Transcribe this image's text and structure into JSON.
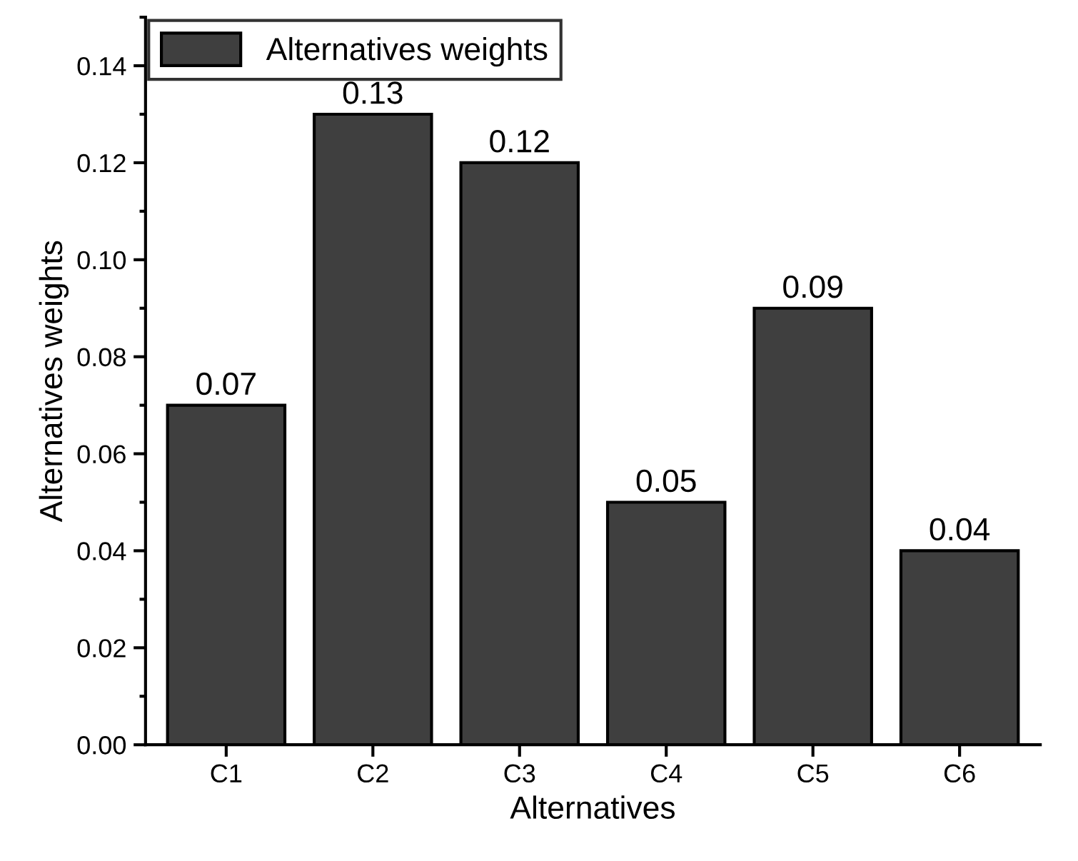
{
  "chart_data": {
    "type": "bar",
    "xlabel": "Alternatives",
    "ylabel": "Alternatives weights",
    "categories": [
      "C1",
      "C2",
      "C3",
      "C4",
      "C5",
      "C6"
    ],
    "series": [
      {
        "name": "Alternatives weights",
        "color": "#3f3f3f",
        "values": [
          0.07,
          0.13,
          0.12,
          0.05,
          0.09,
          0.04
        ]
      }
    ],
    "data_labels": true,
    "legend": "top left",
    "grid": false,
    "ylim": [
      0,
      0.15
    ],
    "yticks": [
      {
        "value": 0,
        "label": "0.00"
      },
      {
        "value": 0.02,
        "label": "0.02"
      },
      {
        "value": 0.04,
        "label": "0.04"
      },
      {
        "value": 0.06,
        "label": "0.06"
      },
      {
        "value": 0.08,
        "label": "0.08"
      },
      {
        "value": 0.1,
        "label": "0.10"
      },
      {
        "value": 0.12,
        "label": "0.12"
      },
      {
        "value": 0.14,
        "label": "0.14"
      }
    ]
  }
}
